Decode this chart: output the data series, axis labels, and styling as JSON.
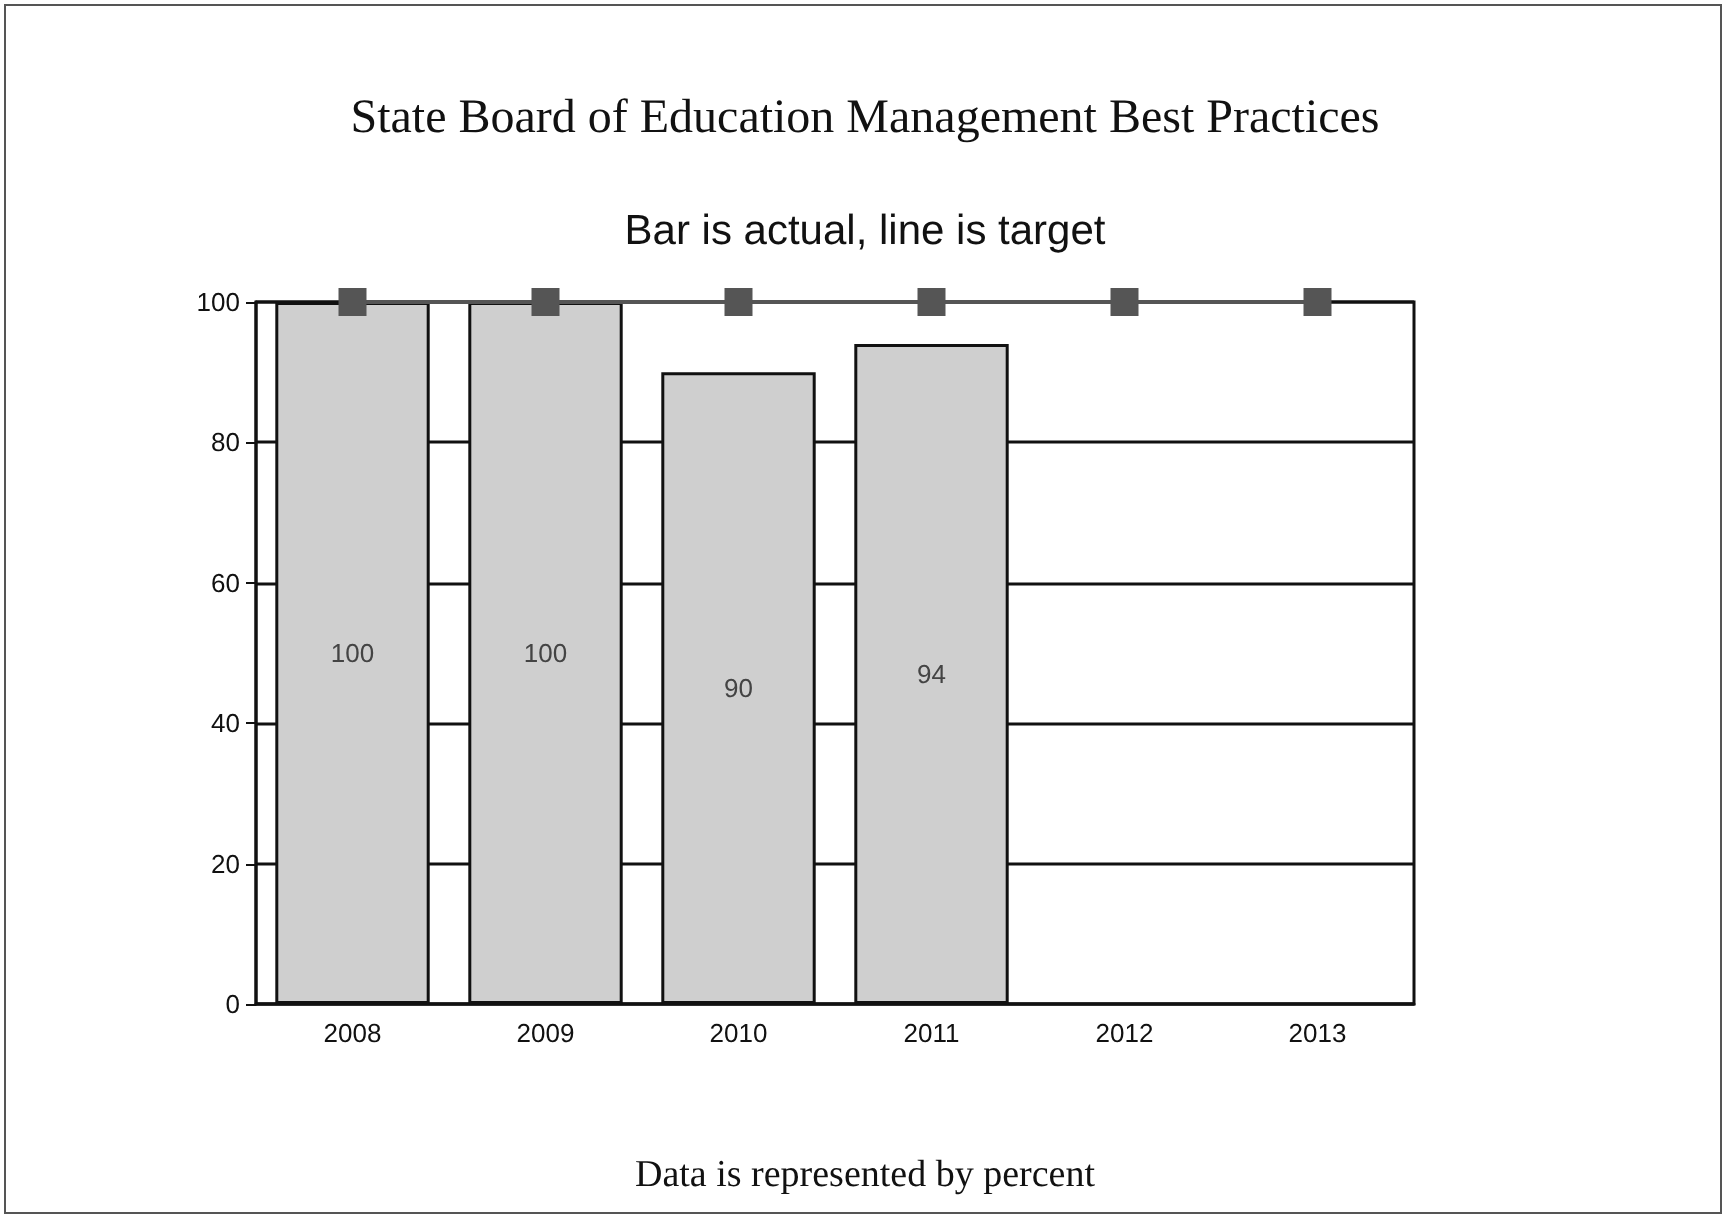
{
  "chart_data": {
    "type": "bar",
    "title": "State Board of Education Management Best Practices",
    "subtitle": "Bar is actual, line is target",
    "annotations": [
      "Data is represented by percent"
    ],
    "categories": [
      "2008",
      "2009",
      "2010",
      "2011",
      "2012",
      "2013"
    ],
    "series": [
      {
        "color": "#cfcfcf",
        "values": [
          100,
          100,
          90,
          94,
          null,
          null
        ],
        "value_labels": [
          "100",
          "100",
          "90",
          "94",
          null,
          null
        ]
      },
      {
        "type": "line",
        "color": "#555555",
        "marker": "square",
        "values": [
          100,
          100,
          100,
          100,
          100,
          100
        ]
      }
    ],
    "ylim": [
      0,
      100
    ],
    "yticks": [
      0,
      20,
      40,
      60,
      80,
      100
    ],
    "grid": "y"
  }
}
